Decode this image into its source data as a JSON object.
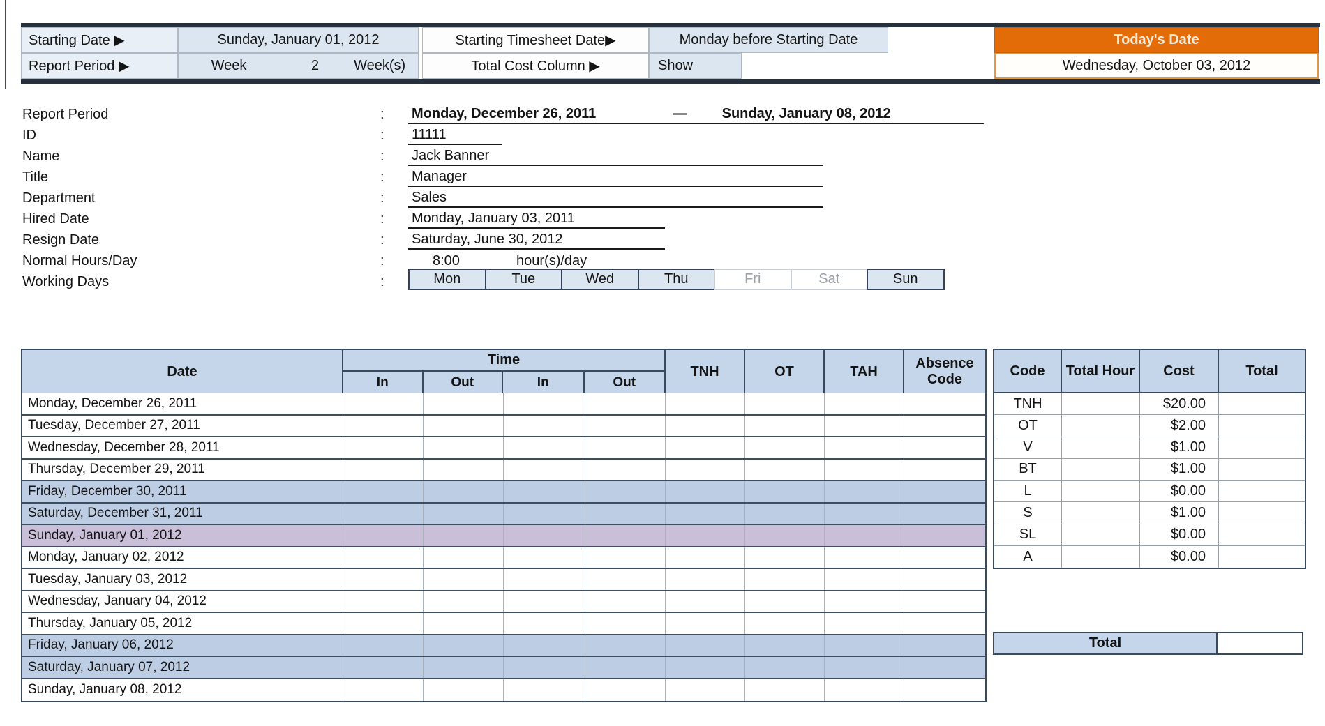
{
  "top": {
    "starting_date_label": "Starting Date ▶",
    "starting_date_value": "Sunday, January 01, 2012",
    "starting_timesheet_label": "Starting Timesheet Date▶",
    "starting_timesheet_value": "Monday before Starting Date",
    "report_period_label": "Report Period ▶",
    "week_label": "Week",
    "week_count": "2",
    "weeks_label": "Week(s)",
    "total_cost_label": "Total Cost Column ▶",
    "total_cost_value": "Show",
    "todays_date_label": "Today's Date",
    "todays_date_value": "Wednesday, October 03, 2012"
  },
  "info": {
    "colon": ":",
    "report_period": {
      "label": "Report Period",
      "start": "Monday, December 26, 2011",
      "dash": "—",
      "end": "Sunday, January 08, 2012"
    },
    "id": {
      "label": "ID",
      "value": "11111"
    },
    "name": {
      "label": "Name",
      "value": "Jack Banner"
    },
    "title": {
      "label": "Title",
      "value": "Manager"
    },
    "department": {
      "label": "Department",
      "value": "Sales"
    },
    "hired_date": {
      "label": "Hired Date",
      "value": "Monday, January 03, 2011"
    },
    "resign_date": {
      "label": "Resign Date",
      "value": "Saturday, June 30, 2012"
    },
    "normal_hours": {
      "label": "Normal Hours/Day",
      "value": "8:00",
      "unit": "hour(s)/day"
    },
    "working_days": {
      "label": "Working Days",
      "days": [
        {
          "label": "Mon",
          "active": true
        },
        {
          "label": "Tue",
          "active": true
        },
        {
          "label": "Wed",
          "active": true
        },
        {
          "label": "Thu",
          "active": true
        },
        {
          "label": "Fri",
          "active": false
        },
        {
          "label": "Sat",
          "active": false
        },
        {
          "label": "Sun",
          "active": true
        }
      ]
    }
  },
  "timesheet": {
    "header": {
      "date": "Date",
      "time": "Time",
      "sub": [
        "In",
        "Out",
        "In",
        "Out"
      ],
      "tnh": "TNH",
      "ot": "OT",
      "tah": "TAH",
      "absence": "Absence Code"
    },
    "rows": [
      {
        "date": "Monday, December 26, 2011",
        "shade": "none"
      },
      {
        "date": "Tuesday, December 27, 2011",
        "shade": "none"
      },
      {
        "date": "Wednesday, December 28, 2011",
        "shade": "none"
      },
      {
        "date": "Thursday, December 29, 2011",
        "shade": "none"
      },
      {
        "date": "Friday, December 30, 2011",
        "shade": "weekend"
      },
      {
        "date": "Saturday, December 31, 2011",
        "shade": "weekend"
      },
      {
        "date": "Sunday, January 01, 2012",
        "shade": "sunday"
      },
      {
        "date": "Monday, January 02, 2012",
        "shade": "none"
      },
      {
        "date": "Tuesday, January 03, 2012",
        "shade": "none"
      },
      {
        "date": "Wednesday, January 04, 2012",
        "shade": "none"
      },
      {
        "date": "Thursday, January 05, 2012",
        "shade": "none"
      },
      {
        "date": "Friday, January 06, 2012",
        "shade": "weekend"
      },
      {
        "date": "Saturday, January 07, 2012",
        "shade": "weekend"
      },
      {
        "date": "Sunday, January 08, 2012",
        "shade": "none"
      }
    ]
  },
  "codes": {
    "header": [
      "Code",
      "Total Hour",
      "Cost",
      "Total"
    ],
    "rows": [
      {
        "code": "TNH",
        "hour": "",
        "cost": "$20.00",
        "total": ""
      },
      {
        "code": "OT",
        "hour": "",
        "cost": "$2.00",
        "total": ""
      },
      {
        "code": "V",
        "hour": "",
        "cost": "$1.00",
        "total": ""
      },
      {
        "code": "BT",
        "hour": "",
        "cost": "$1.00",
        "total": ""
      },
      {
        "code": "L",
        "hour": "",
        "cost": "$0.00",
        "total": ""
      },
      {
        "code": "S",
        "hour": "",
        "cost": "$1.00",
        "total": ""
      },
      {
        "code": "SL",
        "hour": "",
        "cost": "$0.00",
        "total": ""
      },
      {
        "code": "A",
        "hour": "",
        "cost": "$0.00",
        "total": ""
      }
    ],
    "total_label": "Total"
  },
  "colors": {
    "accent_orange": "#E36C09",
    "header_blue": "#C5D6EA",
    "weekend_blue": "#BCCDE4",
    "sunday_purple": "#C9BFD8",
    "control_blue": "#DCE6F1",
    "dark_bar": "#26313D"
  }
}
